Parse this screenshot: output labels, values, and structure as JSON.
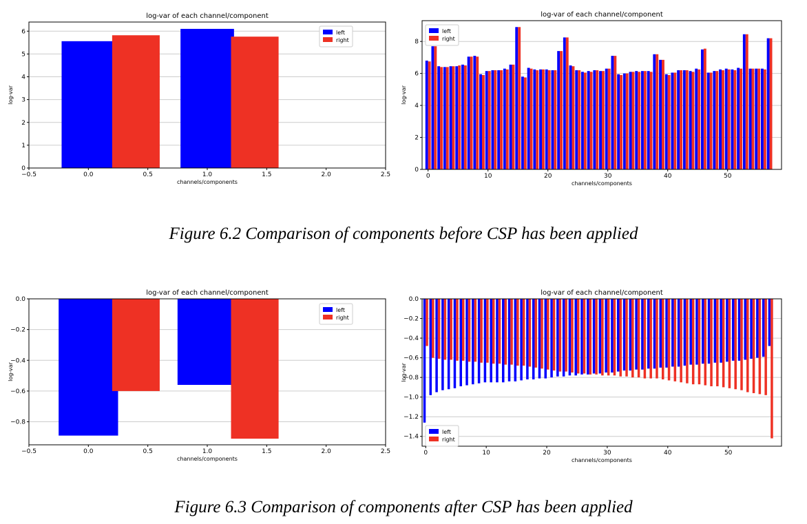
{
  "figure1": {
    "caption": "Figure 6.2 Comparison of components before CSP has been applied"
  },
  "figure2": {
    "caption": "Figure 6.3 Comparison of components after CSP has been applied"
  },
  "colors": {
    "left": "#0000ff",
    "right": "#ee3124",
    "grid": "#cccccc"
  },
  "chart_data": [
    {
      "id": "c1",
      "type": "bar",
      "title": "log-var of each channel/component",
      "xlabel": "channels/components",
      "ylabel": "log-var",
      "xlim": [
        -0.5,
        2.5
      ],
      "ylim": [
        0,
        6.4
      ],
      "xticks": [
        -0.5,
        0.0,
        0.5,
        1.0,
        1.5,
        2.0,
        2.5
      ],
      "xtick_labels": [
        "−0.5",
        "0.0",
        "0.5",
        "1.0",
        "1.5",
        "2.0",
        "2.5"
      ],
      "yticks": [
        0,
        1,
        2,
        3,
        4,
        5,
        6
      ],
      "ytick_labels": [
        "0",
        "1",
        "2",
        "3",
        "4",
        "5",
        "6"
      ],
      "legend": "top-right",
      "grid": true,
      "series": [
        {
          "name": "left",
          "x": [
            0,
            1
          ],
          "width": 0.45,
          "offset": 0,
          "values": [
            5.56,
            6.1
          ]
        },
        {
          "name": "right",
          "x": [
            0,
            1
          ],
          "width": 0.4,
          "offset": 0.4,
          "values": [
            5.82,
            5.76
          ]
        }
      ]
    },
    {
      "id": "c2",
      "type": "bar",
      "title": "log-var of each channel/component",
      "xlabel": "channels/components",
      "ylabel": "log-var",
      "xlim": [
        -1,
        59
      ],
      "ylim": [
        0,
        9.3
      ],
      "xticks": [
        0,
        10,
        20,
        30,
        40,
        50
      ],
      "xtick_labels": [
        "0",
        "10",
        "20",
        "30",
        "40",
        "50"
      ],
      "yticks": [
        0,
        2,
        4,
        6,
        8
      ],
      "ytick_labels": [
        "0",
        "2",
        "4",
        "6",
        "8"
      ],
      "legend": "top-left",
      "grid": true,
      "bar_width": 0.45,
      "series": [
        {
          "name": "left",
          "values": [
            6.8,
            7.7,
            6.45,
            6.4,
            6.45,
            6.45,
            6.55,
            7.05,
            7.1,
            5.95,
            6.15,
            6.2,
            6.2,
            6.3,
            6.55,
            8.9,
            5.8,
            6.35,
            6.25,
            6.25,
            6.25,
            6.2,
            7.4,
            8.25,
            6.5,
            6.2,
            6.1,
            6.15,
            6.2,
            6.15,
            6.3,
            7.1,
            5.95,
            6.0,
            6.1,
            6.15,
            6.15,
            6.15,
            7.2,
            6.85,
            5.95,
            6.05,
            6.2,
            6.2,
            6.15,
            6.3,
            7.5,
            6.05,
            6.15,
            6.25,
            6.3,
            6.25,
            6.35,
            8.45,
            6.3,
            6.3,
            6.3,
            8.2
          ]
        },
        {
          "name": "right",
          "values": [
            6.75,
            7.7,
            6.4,
            6.4,
            6.45,
            6.5,
            6.5,
            7.05,
            7.05,
            5.9,
            6.15,
            6.2,
            6.2,
            6.25,
            6.55,
            8.9,
            5.75,
            6.3,
            6.2,
            6.25,
            6.2,
            6.2,
            7.4,
            8.25,
            6.45,
            6.2,
            6.05,
            6.1,
            6.2,
            6.15,
            6.3,
            7.1,
            5.9,
            6.0,
            6.1,
            6.1,
            6.15,
            6.1,
            7.2,
            6.85,
            5.9,
            6.05,
            6.2,
            6.2,
            6.1,
            6.25,
            7.55,
            6.05,
            6.15,
            6.2,
            6.25,
            6.2,
            6.3,
            8.45,
            6.3,
            6.3,
            6.25,
            8.2
          ]
        }
      ]
    },
    {
      "id": "c3",
      "type": "bar",
      "title": "log-var of each channel/component",
      "xlabel": "channels/components",
      "ylabel": "log-var",
      "xlim": [
        -0.5,
        2.5
      ],
      "ylim": [
        -0.95,
        0
      ],
      "xticks": [
        -0.5,
        0.0,
        0.5,
        1.0,
        1.5,
        2.0,
        2.5
      ],
      "xtick_labels": [
        "−0.5",
        "0.0",
        "0.5",
        "1.0",
        "1.5",
        "2.0",
        "2.5"
      ],
      "yticks": [
        0.0,
        -0.2,
        -0.4,
        -0.6,
        -0.8
      ],
      "ytick_labels": [
        "0.0",
        "−0.2",
        "−0.4",
        "−0.6",
        "−0.8"
      ],
      "legend": "top-right",
      "grid": true,
      "series": [
        {
          "name": "left",
          "x": [
            0,
            1
          ],
          "width": 0.5,
          "offset": 0,
          "values": [
            -0.89,
            -0.56
          ]
        },
        {
          "name": "right",
          "x": [
            0,
            1
          ],
          "width": 0.4,
          "offset": 0.4,
          "values": [
            -0.6,
            -0.91
          ]
        }
      ]
    },
    {
      "id": "c4",
      "type": "bar",
      "title": "log-var of each channel/component",
      "xlabel": "channels/components",
      "ylabel": "log-var",
      "xlim": [
        -0.6,
        58.8
      ],
      "ylim": [
        -1.5,
        0
      ],
      "xticks": [
        0,
        10,
        20,
        30,
        40,
        50
      ],
      "xtick_labels": [
        "0",
        "10",
        "20",
        "30",
        "40",
        "50"
      ],
      "yticks": [
        0.0,
        -0.2,
        -0.4,
        -0.6,
        -0.8,
        -1.0,
        -1.2,
        -1.4
      ],
      "ytick_labels": [
        "0.0",
        "−0.2",
        "−0.4",
        "−0.6",
        "−0.8",
        "−1.0",
        "−1.2",
        "−1.4"
      ],
      "legend": "bottom-left",
      "grid": true,
      "bar_width": 0.4,
      "series": [
        {
          "name": "left",
          "values": [
            -1.26,
            -0.98,
            -0.95,
            -0.93,
            -0.92,
            -0.91,
            -0.89,
            -0.88,
            -0.87,
            -0.86,
            -0.85,
            -0.85,
            -0.85,
            -0.85,
            -0.84,
            -0.84,
            -0.83,
            -0.82,
            -0.82,
            -0.81,
            -0.81,
            -0.8,
            -0.79,
            -0.79,
            -0.78,
            -0.78,
            -0.77,
            -0.77,
            -0.76,
            -0.76,
            -0.75,
            -0.75,
            -0.74,
            -0.73,
            -0.73,
            -0.72,
            -0.72,
            -0.71,
            -0.71,
            -0.7,
            -0.7,
            -0.69,
            -0.69,
            -0.68,
            -0.67,
            -0.67,
            -0.66,
            -0.66,
            -0.65,
            -0.65,
            -0.64,
            -0.63,
            -0.63,
            -0.62,
            -0.61,
            -0.6,
            -0.59,
            -0.48
          ]
        },
        {
          "name": "right",
          "values": [
            -0.48,
            -0.6,
            -0.61,
            -0.62,
            -0.62,
            -0.63,
            -0.63,
            -0.64,
            -0.64,
            -0.65,
            -0.65,
            -0.66,
            -0.66,
            -0.67,
            -0.67,
            -0.68,
            -0.68,
            -0.69,
            -0.7,
            -0.71,
            -0.72,
            -0.73,
            -0.74,
            -0.74,
            -0.75,
            -0.76,
            -0.76,
            -0.77,
            -0.77,
            -0.78,
            -0.78,
            -0.78,
            -0.79,
            -0.79,
            -0.8,
            -0.8,
            -0.81,
            -0.81,
            -0.81,
            -0.82,
            -0.83,
            -0.84,
            -0.85,
            -0.86,
            -0.87,
            -0.87,
            -0.88,
            -0.89,
            -0.89,
            -0.9,
            -0.91,
            -0.92,
            -0.93,
            -0.95,
            -0.96,
            -0.97,
            -0.98,
            -1.42
          ]
        }
      ]
    }
  ]
}
